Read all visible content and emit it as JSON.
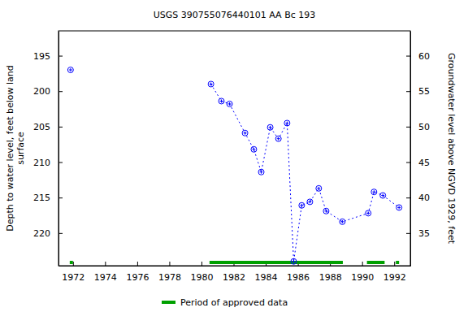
{
  "chart_data": {
    "type": "scatter",
    "title": "USGS 390755076440101 AA Bc 193",
    "y_label": [
      "Depth to water level, feet below land",
      "surface"
    ],
    "y2_label": "Groundwater level above NGVD 1929, feet",
    "series": [
      {
        "name": "Depth to water level",
        "color": "#0000ff",
        "marker": "circle",
        "line_style": "dotted",
        "x": [
          1971.85,
          null,
          1980.59,
          1981.24,
          1981.75,
          1982.71,
          1983.26,
          1983.72,
          1984.28,
          1984.79,
          1985.33,
          1985.74,
          1986.24,
          1986.75,
          1987.3,
          1987.76,
          1988.77,
          1990.38,
          1990.74,
          1991.29,
          1992.3
        ],
        "values": [
          197.0,
          null,
          199.0,
          201.4,
          201.8,
          205.9,
          208.2,
          211.4,
          205.1,
          206.7,
          204.5,
          224.0,
          216.1,
          215.6,
          213.7,
          216.9,
          218.4,
          217.2,
          214.2,
          214.7,
          216.4
        ]
      }
    ],
    "approved_periods": [
      [
        1971.8,
        1972.0
      ],
      [
        1980.5,
        1988.8
      ],
      [
        1990.3,
        1991.4
      ],
      [
        1992.1,
        1992.3
      ]
    ],
    "approved_color": "#00a000",
    "legend_label": "Period of approved data",
    "xlim": [
      1971.1,
      1993.0
    ],
    "xticks": [
      1972,
      1974,
      1976,
      1978,
      1980,
      1982,
      1984,
      1986,
      1988,
      1990,
      1992
    ],
    "ylim": [
      191.5,
      224.6
    ],
    "yticks": [
      195,
      200,
      205,
      210,
      215,
      220
    ],
    "y2lim": [
      63.5,
      30.4
    ],
    "y2ticks": [
      35,
      40,
      45,
      50,
      55,
      60
    ],
    "grid": false
  }
}
